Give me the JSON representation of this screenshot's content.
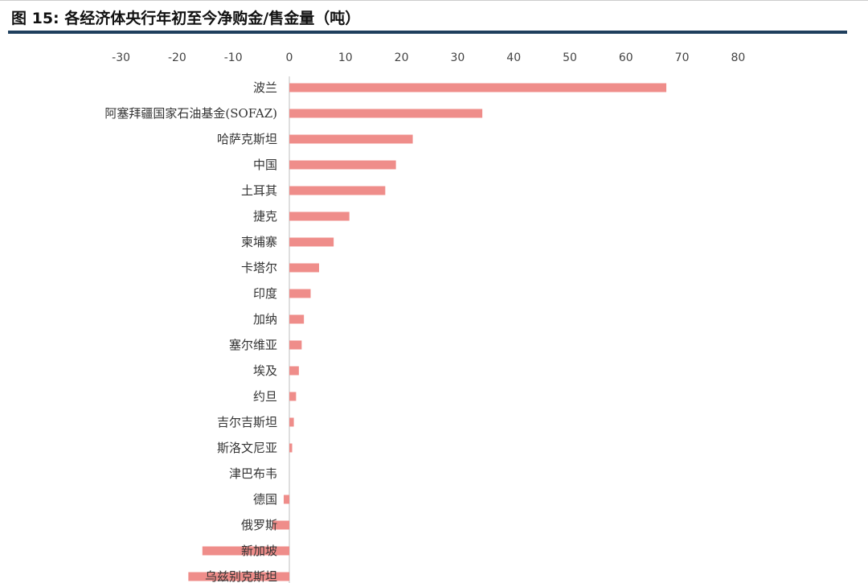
{
  "header": {
    "title": "图 15: 各经济体央行年初至今净购金/售金量（吨）"
  },
  "colors": {
    "bar": "#ef8d8a",
    "title_rule": "#1f3f5d",
    "axis": "#bfbfbf"
  },
  "chart_data": {
    "type": "bar",
    "orientation": "horizontal",
    "title": "各经济体央行年初至今净购金/售金量（吨）",
    "xlabel": "",
    "ylabel": "",
    "xlim": [
      -30,
      80
    ],
    "xticks": [
      -30,
      -20,
      -10,
      0,
      10,
      20,
      30,
      40,
      50,
      60,
      70,
      80
    ],
    "x_axis_position": "top",
    "grid": false,
    "legend": "none",
    "categories": [
      "波兰",
      "阿塞拜疆国家石油基金(SOFAZ)",
      "哈萨克斯坦",
      "中国",
      "土耳其",
      "捷克",
      "柬埔寨",
      "卡塔尔",
      "印度",
      "加纳",
      "塞尔维亚",
      "埃及",
      "约旦",
      "吉尔吉斯坦",
      "斯洛文尼亚",
      "津巴布韦",
      "德国",
      "俄罗斯",
      "新加坡",
      "乌兹别克斯坦"
    ],
    "values": [
      67.2,
      34.4,
      22.0,
      19.0,
      17.1,
      10.7,
      7.9,
      5.3,
      3.8,
      2.6,
      2.2,
      1.7,
      1.2,
      0.8,
      0.5,
      0.0,
      -1.0,
      -3.0,
      -15.5,
      -18.0
    ]
  }
}
